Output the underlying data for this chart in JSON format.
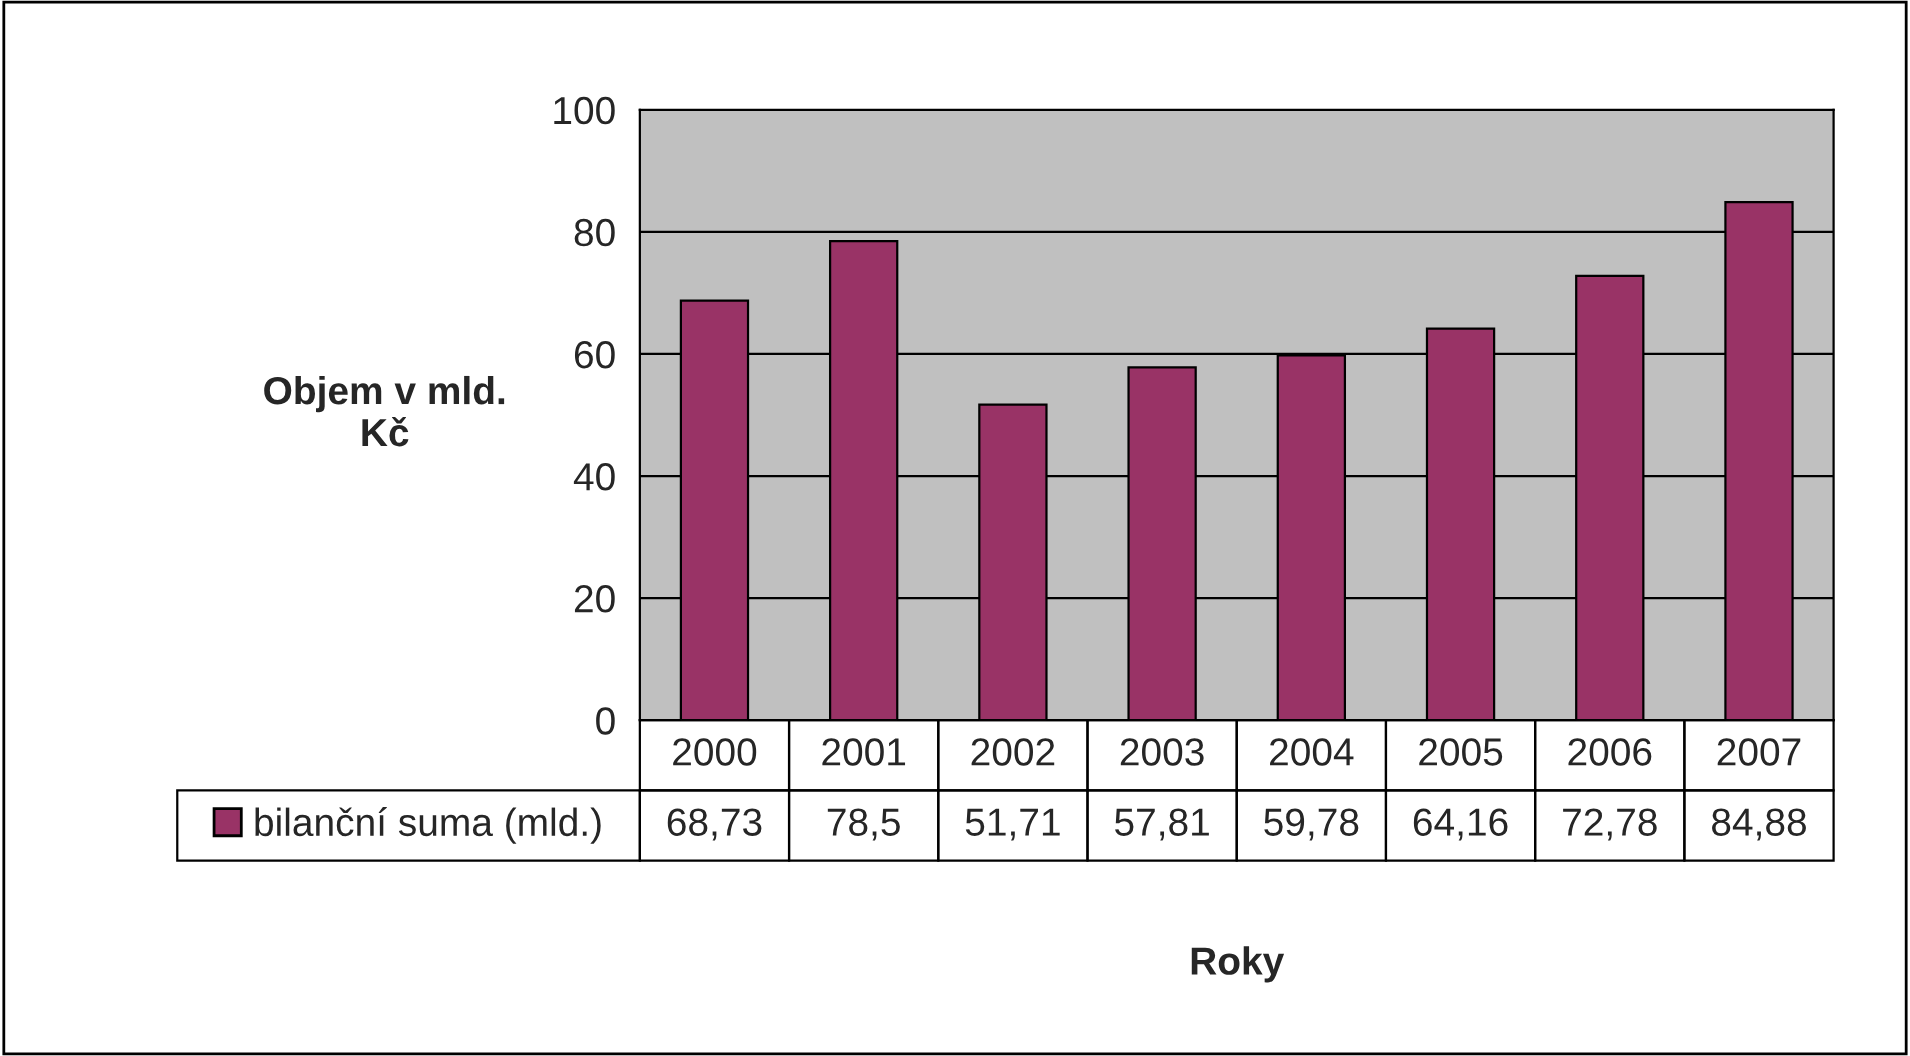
{
  "chart_data": {
    "type": "bar",
    "xlabel": "Roky",
    "ylabel": "Objem v mld.\nKč",
    "categories": [
      "2000",
      "2001",
      "2002",
      "2003",
      "2004",
      "2005",
      "2006",
      "2007"
    ],
    "series": [
      {
        "name": "bilanční suma (mld.)",
        "color": "#993366",
        "values": [
          68.73,
          78.5,
          51.71,
          57.81,
          59.78,
          64.16,
          72.78,
          84.88
        ],
        "value_labels": [
          "68,73",
          "78,5",
          "51,71",
          "57,81",
          "59,78",
          "64,16",
          "72,78",
          "84,88"
        ]
      }
    ],
    "ylim": [
      0,
      100
    ],
    "yticks": [
      0,
      20,
      40,
      60,
      80,
      100
    ],
    "grid": "y",
    "legend": "bottom left"
  }
}
